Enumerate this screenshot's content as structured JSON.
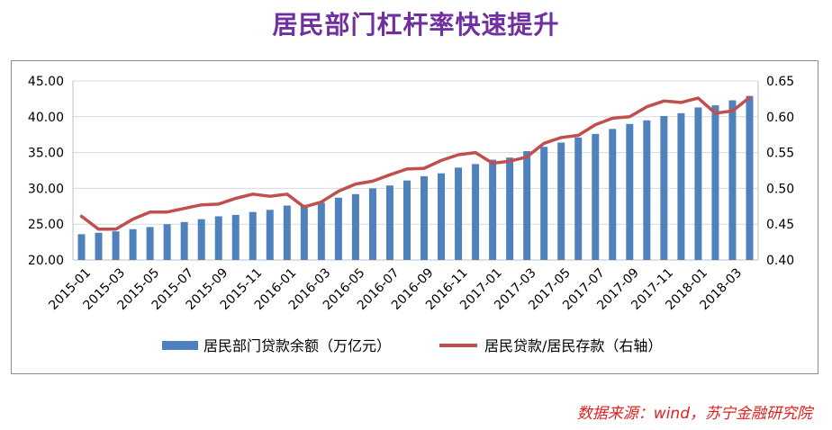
{
  "title": "居民部门杠杆率快速提升",
  "source": "数据来源：wind，苏宁金融研究院",
  "chart_data": {
    "type": "bar",
    "categories": [
      "2015-01",
      "2015-02",
      "2015-03",
      "2015-04",
      "2015-05",
      "2015-06",
      "2015-07",
      "2015-08",
      "2015-09",
      "2015-10",
      "2015-11",
      "2015-12",
      "2016-01",
      "2016-02",
      "2016-03",
      "2016-04",
      "2016-05",
      "2016-06",
      "2016-07",
      "2016-08",
      "2016-09",
      "2016-10",
      "2016-11",
      "2016-12",
      "2017-01",
      "2017-02",
      "2017-03",
      "2017-04",
      "2017-05",
      "2017-06",
      "2017-07",
      "2017-08",
      "2017-09",
      "2017-10",
      "2017-11",
      "2017-12",
      "2018-01",
      "2018-02",
      "2018-03",
      "2018-04"
    ],
    "tick_labels": [
      "2015-01",
      "2015-03",
      "2015-05",
      "2015-07",
      "2015-09",
      "2015-11",
      "2016-01",
      "2016-03",
      "2016-05",
      "2016-07",
      "2016-09",
      "2016-11",
      "2017-01",
      "2017-03",
      "2017-05",
      "2017-07",
      "2017-09",
      "2017-11",
      "2018-01",
      "2018-03"
    ],
    "series": [
      {
        "name": "居民部门贷款余额（万亿元）",
        "type": "bar",
        "axis": "left",
        "color": "#4f81bd",
        "values": [
          23.6,
          23.8,
          24.0,
          24.3,
          24.6,
          25.0,
          25.3,
          25.7,
          26.1,
          26.3,
          26.7,
          27.0,
          27.6,
          27.7,
          28.0,
          28.7,
          29.2,
          30.0,
          30.4,
          31.1,
          31.7,
          32.1,
          32.9,
          33.4,
          34.0,
          34.3,
          35.2,
          35.8,
          36.4,
          37.1,
          37.6,
          38.3,
          39.0,
          39.5,
          40.1,
          40.5,
          41.3,
          41.6,
          42.3,
          42.9
        ]
      },
      {
        "name": "居民贷款/居民存款（右轴）",
        "type": "line",
        "axis": "right",
        "color": "#c0504d",
        "values": [
          0.461,
          0.443,
          0.443,
          0.457,
          0.467,
          0.467,
          0.472,
          0.477,
          0.478,
          0.486,
          0.492,
          0.489,
          0.492,
          0.474,
          0.481,
          0.496,
          0.506,
          0.51,
          0.519,
          0.527,
          0.528,
          0.539,
          0.547,
          0.55,
          0.535,
          0.538,
          0.544,
          0.563,
          0.571,
          0.574,
          0.589,
          0.598,
          0.6,
          0.614,
          0.622,
          0.62,
          0.626,
          0.605,
          0.608,
          0.627
        ]
      }
    ],
    "yleft": {
      "min": 20,
      "max": 45,
      "step": 5,
      "labels": [
        "20.00",
        "25.00",
        "30.00",
        "35.00",
        "40.00",
        "45.00"
      ]
    },
    "yright": {
      "min": 0.4,
      "max": 0.65,
      "step": 0.05,
      "labels": [
        "0.40",
        "0.45",
        "0.50",
        "0.55",
        "0.60",
        "0.65"
      ]
    },
    "grid": true,
    "legend_position": "bottom"
  }
}
